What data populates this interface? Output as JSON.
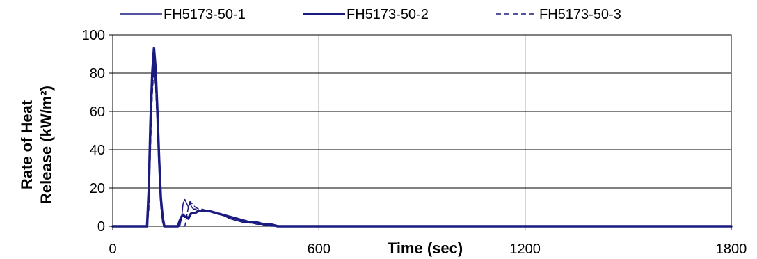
{
  "chart_data": {
    "type": "line",
    "xlabel": "Time (sec)",
    "ylabel_lines": [
      "Rate of Heat",
      "Release (kW/m²)"
    ],
    "xlim": [
      0,
      1800
    ],
    "ylim": [
      0,
      100
    ],
    "x_ticks": [
      0,
      600,
      1200,
      1800
    ],
    "y_ticks": [
      0,
      20,
      40,
      60,
      80,
      100
    ],
    "grid": true,
    "legend_position": "top",
    "series": [
      {
        "name": "FH5173-50-1",
        "color": "#1a1a80",
        "style": "thin",
        "points": [
          [
            0,
            0
          ],
          [
            95,
            0
          ],
          [
            100,
            0
          ],
          [
            105,
            15
          ],
          [
            110,
            50
          ],
          [
            115,
            76
          ],
          [
            120,
            82
          ],
          [
            125,
            75
          ],
          [
            130,
            55
          ],
          [
            135,
            30
          ],
          [
            140,
            12
          ],
          [
            145,
            3
          ],
          [
            150,
            0
          ],
          [
            195,
            0
          ],
          [
            200,
            4
          ],
          [
            205,
            12
          ],
          [
            210,
            14
          ],
          [
            215,
            12
          ],
          [
            220,
            10
          ],
          [
            225,
            12
          ],
          [
            230,
            10
          ],
          [
            235,
            9
          ],
          [
            240,
            9
          ],
          [
            250,
            8
          ],
          [
            260,
            8
          ],
          [
            280,
            8
          ],
          [
            300,
            7
          ],
          [
            320,
            6
          ],
          [
            340,
            4
          ],
          [
            360,
            3
          ],
          [
            380,
            2
          ],
          [
            400,
            2
          ],
          [
            420,
            1
          ],
          [
            440,
            1
          ],
          [
            460,
            0
          ],
          [
            500,
            0
          ],
          [
            1800,
            0
          ]
        ]
      },
      {
        "name": "FH5173-50-2",
        "color": "#1a1a80",
        "style": "thick",
        "points": [
          [
            0,
            0
          ],
          [
            95,
            0
          ],
          [
            100,
            0
          ],
          [
            105,
            20
          ],
          [
            110,
            55
          ],
          [
            115,
            80
          ],
          [
            120,
            93
          ],
          [
            125,
            82
          ],
          [
            130,
            60
          ],
          [
            135,
            35
          ],
          [
            140,
            15
          ],
          [
            145,
            5
          ],
          [
            150,
            0
          ],
          [
            190,
            0
          ],
          [
            195,
            3
          ],
          [
            200,
            5
          ],
          [
            205,
            6
          ],
          [
            210,
            5
          ],
          [
            215,
            5
          ],
          [
            220,
            4
          ],
          [
            225,
            6
          ],
          [
            230,
            7
          ],
          [
            240,
            7
          ],
          [
            250,
            8
          ],
          [
            260,
            8
          ],
          [
            270,
            8
          ],
          [
            280,
            8
          ],
          [
            300,
            7
          ],
          [
            320,
            6
          ],
          [
            340,
            5
          ],
          [
            360,
            4
          ],
          [
            380,
            3
          ],
          [
            400,
            2
          ],
          [
            420,
            2
          ],
          [
            440,
            1
          ],
          [
            460,
            1
          ],
          [
            480,
            0
          ],
          [
            1800,
            0
          ]
        ]
      },
      {
        "name": "FH5173-50-3",
        "color": "#1a1a80",
        "style": "dashed",
        "points": [
          [
            0,
            0
          ],
          [
            100,
            0
          ],
          [
            105,
            8
          ],
          [
            110,
            40
          ],
          [
            115,
            68
          ],
          [
            120,
            84
          ],
          [
            125,
            72
          ],
          [
            130,
            50
          ],
          [
            135,
            28
          ],
          [
            140,
            10
          ],
          [
            145,
            2
          ],
          [
            150,
            0
          ],
          [
            210,
            0
          ],
          [
            215,
            5
          ],
          [
            220,
            10
          ],
          [
            225,
            13
          ],
          [
            230,
            12
          ],
          [
            235,
            11
          ],
          [
            240,
            10
          ],
          [
            250,
            9
          ],
          [
            260,
            9
          ],
          [
            280,
            8
          ],
          [
            300,
            7
          ],
          [
            320,
            6
          ],
          [
            340,
            4
          ],
          [
            360,
            3
          ],
          [
            380,
            2
          ],
          [
            400,
            2
          ],
          [
            420,
            1
          ],
          [
            450,
            1
          ],
          [
            480,
            0
          ],
          [
            1800,
            0
          ]
        ]
      }
    ]
  }
}
